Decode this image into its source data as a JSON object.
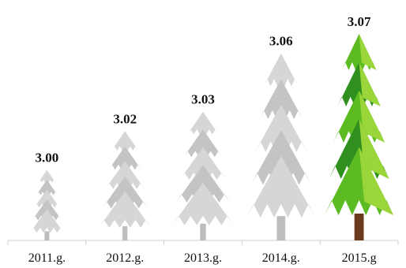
{
  "chart_data": {
    "type": "bar",
    "title": "",
    "xlabel": "",
    "ylabel": "",
    "categories": [
      "2011.g.",
      "2012.g.",
      "2013.g.",
      "2014.g.",
      "2015.g"
    ],
    "values": [
      3.0,
      3.02,
      3.03,
      3.06,
      3.07
    ],
    "value_labels": [
      "3.00",
      "3.02",
      "3.03",
      "3.06",
      "3.07"
    ],
    "ylim": [
      2.98,
      3.07
    ],
    "bar_shape": "tree-pictogram",
    "grid": false,
    "legend": "none",
    "colors": {
      "tree_faded": "#d6d6d6",
      "tree_faded_shadow": "#c4c4c4",
      "trunk_faded": "#bdbdbd",
      "tree_highlight_dark": "#2f8f1f",
      "tree_highlight_mid": "#5cbb23",
      "tree_highlight_light": "#9ad63a",
      "trunk_highlight": "#6a3a1c",
      "axis": "#cfcfcf"
    },
    "highlighted_index": 4
  }
}
